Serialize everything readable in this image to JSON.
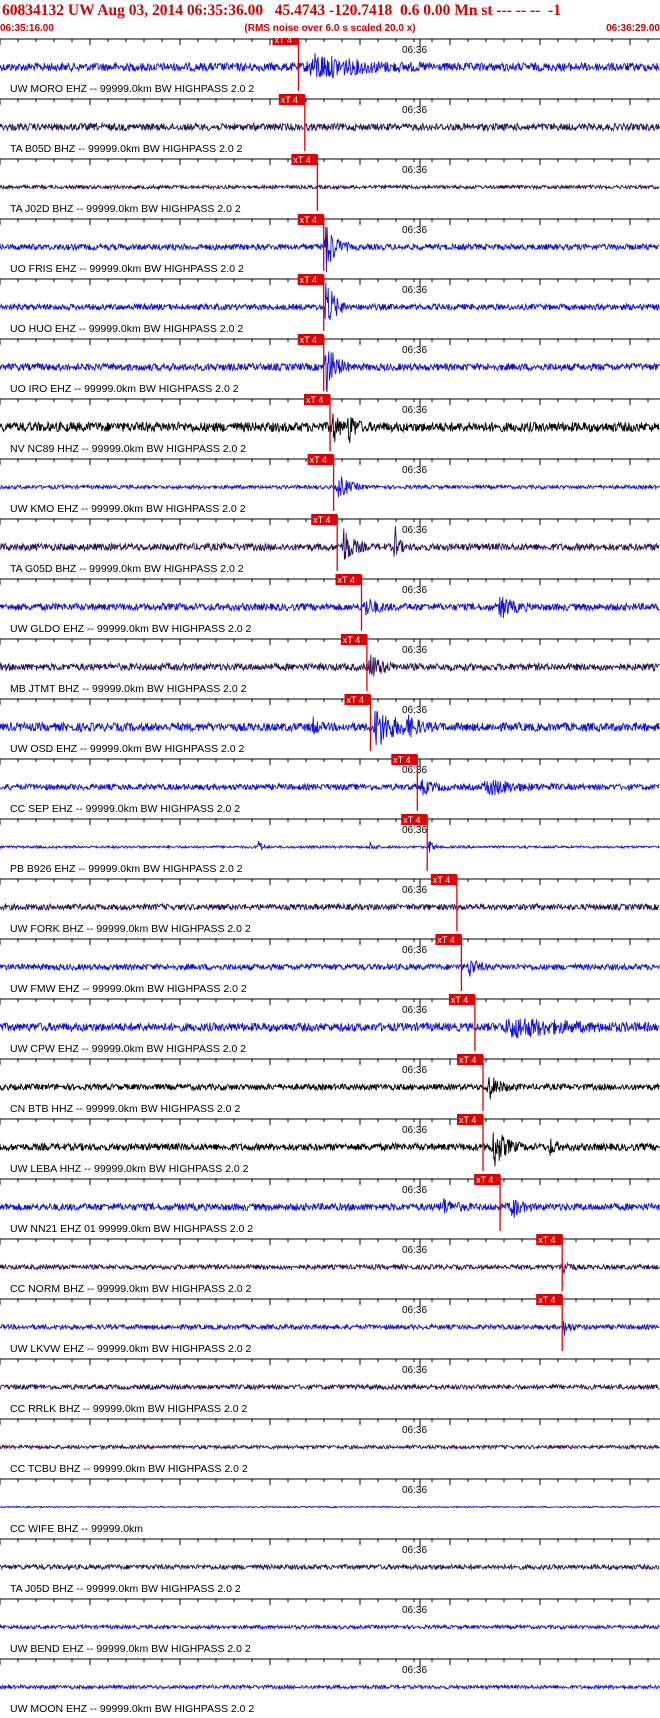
{
  "header": {
    "title": "60834132 UW Aug 03, 2014 06:35:36.00   45.4743 -120.7418  0.6 0.00 Mn st --- -- --  -1",
    "start_time": "06:35:16.00",
    "note": "(RMS noise over 6.0 s scaled 20.0 x)",
    "end_time": "06:36:29.00"
  },
  "colors": {
    "title": "#d40000",
    "blue_trace": "#1010e0",
    "dark_trace": "#2a1060",
    "black_trace": "#000000",
    "pick_marker": "#e00000",
    "pick_label_text": "#ffffff",
    "axis": "#000000"
  },
  "chart_data": {
    "type": "seismogram",
    "x_range": [
      "06:35:16.00",
      "06:36:29.00"
    ],
    "minute_label": "06:36",
    "pick_label": "xT 4",
    "traces": [
      {
        "label": "UW MORO EHZ -- 99999.0km BW  HIGHPASS  2.0  2",
        "color": "blue",
        "pick_time": 6.5,
        "amplitude": 0.35,
        "bursts": [
          {
            "t": 8.5,
            "w": 6,
            "a": 0.9
          }
        ]
      },
      {
        "label": "TA B05D BHZ -- 99999.0km BW  HIGHPASS  2.0  2",
        "color": "dark",
        "pick_time": 7.2,
        "amplitude": 0.3,
        "bursts": [
          {
            "t": 48,
            "w": 3,
            "a": 0.9
          },
          {
            "t": 51,
            "w": 3,
            "a": 0.6
          }
        ]
      },
      {
        "label": "TA J02D BHZ -- 99999.0km BW  HIGHPASS  2.0  2",
        "color": "dark",
        "pick_time": 8.6,
        "amplitude": 0.15,
        "bursts": []
      },
      {
        "label": "UO FRIS EHZ -- 99999.0km BW  HIGHPASS  2.0  2",
        "color": "blue",
        "pick_time": 9.3,
        "amplitude": 0.25,
        "bursts": [
          {
            "t": 9.6,
            "w": 1.2,
            "a": 2.2
          }
        ]
      },
      {
        "label": "UO HUO EHZ -- 99999.0km BW  HIGHPASS  2.0  2",
        "color": "blue",
        "pick_time": 9.3,
        "amplitude": 0.25,
        "bursts": [
          {
            "t": 9.6,
            "w": 1.2,
            "a": 2.2
          }
        ]
      },
      {
        "label": "UO IRO EHZ -- 99999.0km BW  HIGHPASS  2.0  2",
        "color": "blue",
        "pick_time": 9.3,
        "amplitude": 0.3,
        "bursts": [
          {
            "t": 9.6,
            "w": 1.2,
            "a": 2.2
          }
        ]
      },
      {
        "label": "NV NC89 HHZ -- 99999.0km BW  HIGHPASS  2.0  2",
        "color": "black",
        "pick_time": 10.0,
        "amplitude": 0.4,
        "bursts": [
          {
            "t": 10.3,
            "w": 0.8,
            "a": 1.4
          },
          {
            "t": 12.1,
            "w": 0.8,
            "a": 1.3
          }
        ]
      },
      {
        "label": "UW KMO EHZ -- 99999.0km BW  HIGHPASS  2.0  2",
        "color": "blue",
        "pick_time": 10.4,
        "amplitude": 0.15,
        "bursts": [
          {
            "t": 11.0,
            "w": 1.5,
            "a": 1.0
          }
        ]
      },
      {
        "label": "TA G05D BHZ -- 99999.0km BW  HIGHPASS  2.0  2",
        "color": "dark",
        "pick_time": 10.8,
        "amplitude": 0.3,
        "bursts": [
          {
            "t": 11.5,
            "w": 1.2,
            "a": 1.6
          },
          {
            "t": 17.2,
            "w": 0.5,
            "a": 1.8
          }
        ]
      },
      {
        "label": "UW GLDO EHZ -- 99999.0km BW  HIGHPASS  2.0  2",
        "color": "blue",
        "pick_time": 13.5,
        "amplitude": 0.3,
        "bursts": [
          {
            "t": 14.0,
            "w": 1.5,
            "a": 0.7
          },
          {
            "t": 29.0,
            "w": 1.5,
            "a": 0.9
          }
        ]
      },
      {
        "label": "MB JTMT BHZ -- 99999.0km BW  HIGHPASS  2.0  2",
        "color": "dark",
        "pick_time": 14.1,
        "amplitude": 0.3,
        "bursts": [
          {
            "t": 14.5,
            "w": 1.5,
            "a": 1.0
          }
        ]
      },
      {
        "label": "UW OSD EHZ -- 99999.0km BW  HIGHPASS  2.0  2",
        "color": "blue",
        "pick_time": 14.5,
        "amplitude": 0.35,
        "bursts": [
          {
            "t": 15.2,
            "w": 2.5,
            "a": 1.6
          },
          {
            "t": 8.0,
            "w": 0.6,
            "a": 0.8
          },
          {
            "t": 18.5,
            "w": 1.5,
            "a": 0.6
          }
        ]
      },
      {
        "label": "CC SEP EHZ -- 99999.0km BW  HIGHPASS  2.0  2",
        "color": "blue",
        "pick_time": 19.7,
        "amplitude": 0.25,
        "bursts": [
          {
            "t": 20.3,
            "w": 1.5,
            "a": 0.5
          },
          {
            "t": 27.6,
            "w": 3.5,
            "a": 0.6
          }
        ]
      },
      {
        "label": "PB B926 EHZ -- 99999.0km BW  HIGHPASS  2.0  2",
        "color": "blue",
        "pick_time": 20.8,
        "amplitude": 0.1,
        "bursts": [
          {
            "t": 2.0,
            "w": 0.4,
            "a": 0.9
          },
          {
            "t": 21.0,
            "w": 0.6,
            "a": 0.6
          },
          {
            "t": 14.5,
            "w": 0.5,
            "a": 0.5
          }
        ]
      },
      {
        "label": "UW FORK BHZ -- 99999.0km BW  HIGHPASS  2.0  2",
        "color": "dark",
        "pick_time": 24.1,
        "amplitude": 0.25,
        "bursts": []
      },
      {
        "label": "UW FMW EHZ -- 99999.0km BW  HIGHPASS  2.0  2",
        "color": "blue",
        "pick_time": 24.6,
        "amplitude": 0.25,
        "bursts": [
          {
            "t": 25.5,
            "w": 1.0,
            "a": 0.8
          }
        ]
      },
      {
        "label": "UW CPW EHZ -- 99999.0km BW  HIGHPASS  2.0  2",
        "color": "blue",
        "pick_time": 26.1,
        "amplitude": 0.35,
        "bursts": [
          {
            "t": 30.5,
            "w": 7,
            "a": 0.7
          }
        ]
      },
      {
        "label": "CN BTB HHZ -- 99999.0km BW  HIGHPASS  2.0  2",
        "color": "black",
        "pick_time": 27.0,
        "amplitude": 0.25,
        "bursts": [
          {
            "t": 27.6,
            "w": 1.5,
            "a": 1.0
          }
        ]
      },
      {
        "label": "UW LEBA HHZ -- 99999.0km BW  HIGHPASS  2.0  2",
        "color": "black",
        "pick_time": 27.0,
        "amplitude": 0.3,
        "bursts": [
          {
            "t": 28.2,
            "w": 1.5,
            "a": 1.7
          },
          {
            "t": 34.5,
            "w": 0.8,
            "a": 0.6
          }
        ]
      },
      {
        "label": "UW NN21 EHZ 01 99999.0km BW  HIGHPASS  2.0  2",
        "color": "blue",
        "pick_time": 28.9,
        "amplitude": 0.3,
        "bursts": [
          {
            "t": 30.2,
            "w": 1.0,
            "a": 1.0
          },
          {
            "t": 22.5,
            "w": 1.5,
            "a": 0.6
          }
        ]
      },
      {
        "label": "CC NORM BHZ -- 99999.0km BW  HIGHPASS  2.0  2",
        "color": "dark",
        "pick_time": 35.8,
        "amplitude": 0.2,
        "bursts": [
          {
            "t": 36.0,
            "w": 0.8,
            "a": 0.6
          }
        ]
      },
      {
        "label": "UW LKVW EHZ -- 99999.0km BW  HIGHPASS  2.0  2",
        "color": "blue",
        "pick_time": 35.8,
        "amplitude": 0.2,
        "bursts": [
          {
            "t": 36.0,
            "w": 0.8,
            "a": 0.6
          }
        ]
      },
      {
        "label": "CC RRLK BHZ -- 99999.0km BW  HIGHPASS  2.0  2",
        "color": "dark",
        "pick_time": null,
        "amplitude": 0.2,
        "bursts": []
      },
      {
        "label": "CC TCBU BHZ -- 99999.0km BW  HIGHPASS  2.0  2",
        "color": "dark",
        "pick_time": null,
        "amplitude": 0.15,
        "bursts": []
      },
      {
        "label": "CC WIFE BHZ -- 99999.0km",
        "color": "blue",
        "pick_time": null,
        "amplitude": 0.05,
        "bursts": []
      },
      {
        "label": "TA J05D BHZ -- 99999.0km BW  HIGHPASS  2.0  2",
        "color": "dark",
        "pick_time": null,
        "amplitude": 0.2,
        "bursts": []
      },
      {
        "label": "UW BEND EHZ -- 99999.0km BW  HIGHPASS  2.0  2",
        "color": "blue",
        "pick_time": null,
        "amplitude": 0.15,
        "bursts": []
      },
      {
        "label": "UW MOON EHZ -- 99999.0km BW  HIGHPASS  2.0  2",
        "color": "blue",
        "pick_time": null,
        "amplitude": 0.15,
        "bursts": []
      }
    ]
  }
}
